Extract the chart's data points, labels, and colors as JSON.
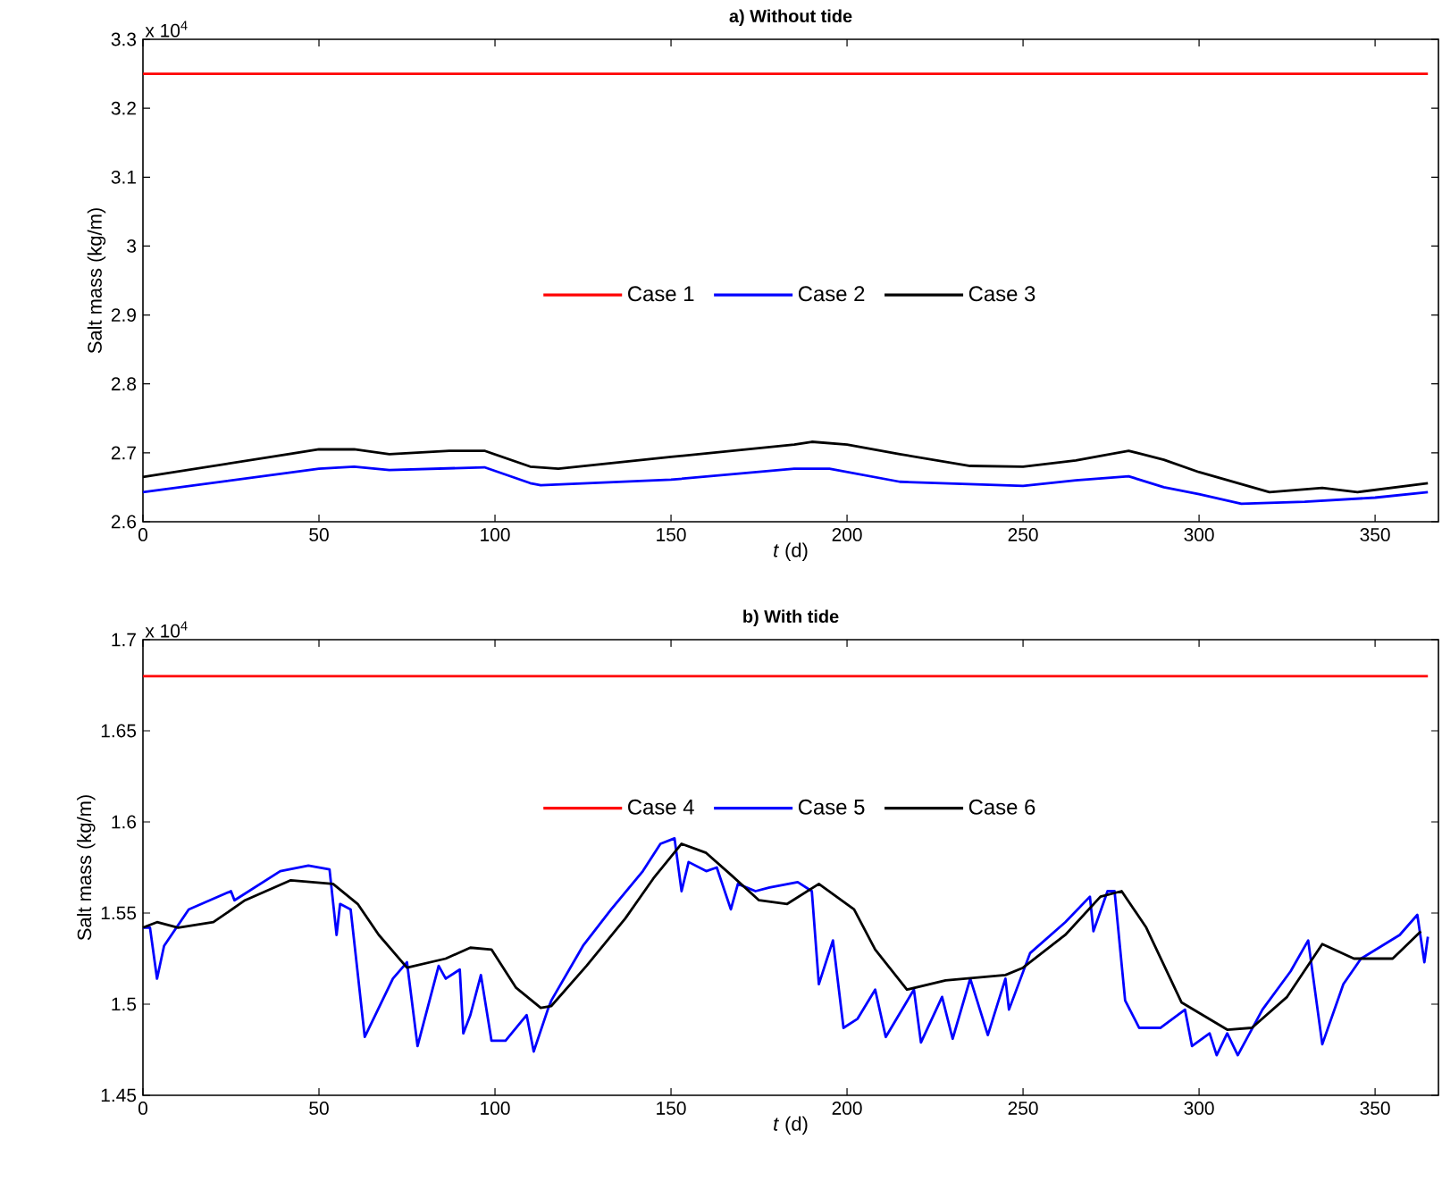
{
  "chart_data": [
    {
      "type": "line",
      "title": "a) Without tide",
      "xlabel": "*t* (d)",
      "ylabel": "Salt mass (kg/m)",
      "legend": "center",
      "annotations": [
        "x 10$^{4}$"
      ],
      "xlim": [
        0,
        368
      ],
      "xticks": [
        0,
        50,
        100,
        150,
        200,
        250,
        300,
        350
      ],
      "ylim": [
        2.6,
        3.3
      ],
      "yticks": [
        2.6,
        2.7,
        2.8,
        2.9,
        3,
        3.1,
        3.2,
        3.3
      ],
      "series": [
        {
          "name": "Case 1",
          "color": "#ff0000",
          "x": [
            0,
            365
          ],
          "values": [
            3.25,
            3.25
          ]
        },
        {
          "name": "Case 2",
          "color": "#0000ff",
          "x": [
            0,
            50,
            60,
            70,
            97,
            110,
            113,
            150,
            185,
            195,
            215,
            250,
            265,
            280,
            290,
            300,
            312,
            330,
            350,
            365
          ],
          "values": [
            2.643,
            2.677,
            2.68,
            2.675,
            2.679,
            2.656,
            2.653,
            2.661,
            2.677,
            2.677,
            2.658,
            2.652,
            2.66,
            2.666,
            2.65,
            2.64,
            2.626,
            2.629,
            2.635,
            2.643
          ]
        },
        {
          "name": "Case 3",
          "color": "#000000",
          "x": [
            0,
            50,
            60,
            70,
            87,
            97,
            110,
            118,
            150,
            185,
            190,
            200,
            215,
            235,
            250,
            265,
            280,
            290,
            300,
            320,
            335,
            345,
            365
          ],
          "values": [
            2.665,
            2.705,
            2.705,
            2.698,
            2.703,
            2.703,
            2.68,
            2.677,
            2.694,
            2.712,
            2.716,
            2.712,
            2.698,
            2.681,
            2.68,
            2.689,
            2.703,
            2.69,
            2.672,
            2.643,
            2.649,
            2.643,
            2.656
          ]
        }
      ]
    },
    {
      "type": "line",
      "title": "b) With tide",
      "xlabel": "*t* (d)",
      "ylabel": "Salt mass (kg/m)",
      "legend": "top",
      "annotations": [
        "x 10$^{4}$"
      ],
      "xlim": [
        0,
        368
      ],
      "xticks": [
        0,
        50,
        100,
        150,
        200,
        250,
        300,
        350
      ],
      "ylim": [
        1.45,
        1.7
      ],
      "yticks": [
        1.45,
        1.5,
        1.55,
        1.6,
        1.65,
        1.7
      ],
      "series": [
        {
          "name": "Case 4",
          "color": "#ff0000",
          "x": [
            0,
            365
          ],
          "values": [
            1.68,
            1.68
          ]
        },
        {
          "name": "Case 5",
          "color": "#0000ff",
          "x": [
            0,
            2,
            4,
            6,
            13,
            25,
            26,
            39,
            47,
            53,
            55,
            56,
            59,
            63,
            65,
            71,
            75,
            78,
            84,
            86,
            90,
            91,
            93,
            96,
            99,
            103,
            109,
            111,
            115,
            116,
            125,
            133,
            142,
            147,
            151,
            153,
            155,
            160,
            163,
            167,
            169,
            174,
            178,
            186,
            190,
            192,
            196,
            199,
            203,
            208,
            211,
            219,
            221,
            227,
            230,
            235,
            240,
            245,
            246,
            252,
            262,
            269,
            270,
            274,
            276,
            279,
            283,
            289,
            296,
            298,
            303,
            305,
            308,
            311,
            318,
            326,
            331,
            335,
            341,
            346,
            357,
            362,
            364,
            365
          ],
          "values": [
            1.542,
            1.542,
            1.514,
            1.532,
            1.552,
            1.562,
            1.557,
            1.573,
            1.576,
            1.574,
            1.538,
            1.555,
            1.552,
            1.482,
            1.49,
            1.514,
            1.523,
            1.477,
            1.521,
            1.514,
            1.519,
            1.484,
            1.494,
            1.516,
            1.48,
            1.48,
            1.494,
            1.474,
            1.497,
            1.502,
            1.532,
            1.552,
            1.573,
            1.588,
            1.591,
            1.562,
            1.578,
            1.573,
            1.575,
            1.552,
            1.566,
            1.562,
            1.564,
            1.567,
            1.562,
            1.511,
            1.535,
            1.487,
            1.492,
            1.508,
            1.482,
            1.508,
            1.479,
            1.504,
            1.481,
            1.514,
            1.483,
            1.514,
            1.497,
            1.528,
            1.545,
            1.559,
            1.54,
            1.562,
            1.562,
            1.502,
            1.487,
            1.487,
            1.497,
            1.477,
            1.484,
            1.472,
            1.484,
            1.472,
            1.497,
            1.518,
            1.535,
            1.478,
            1.511,
            1.525,
            1.538,
            1.549,
            1.523,
            1.537
          ]
        },
        {
          "name": "Case 6",
          "color": "#000000",
          "x": [
            0,
            4,
            10,
            20,
            29,
            42,
            54,
            61,
            67,
            75,
            86,
            93,
            99,
            106,
            113,
            116,
            126,
            137,
            145,
            153,
            160,
            167,
            175,
            183,
            192,
            202,
            208,
            217,
            228,
            245,
            250,
            262,
            272,
            278,
            285,
            295,
            308,
            315,
            325,
            335,
            344,
            355,
            363
          ],
          "values": [
            1.542,
            1.545,
            1.542,
            1.545,
            1.557,
            1.568,
            1.566,
            1.555,
            1.538,
            1.52,
            1.525,
            1.531,
            1.53,
            1.509,
            1.498,
            1.499,
            1.521,
            1.547,
            1.569,
            1.588,
            1.583,
            1.571,
            1.557,
            1.555,
            1.566,
            1.552,
            1.53,
            1.508,
            1.513,
            1.516,
            1.52,
            1.538,
            1.559,
            1.562,
            1.542,
            1.501,
            1.486,
            1.487,
            1.504,
            1.533,
            1.525,
            1.525,
            1.54
          ]
        }
      ]
    }
  ]
}
